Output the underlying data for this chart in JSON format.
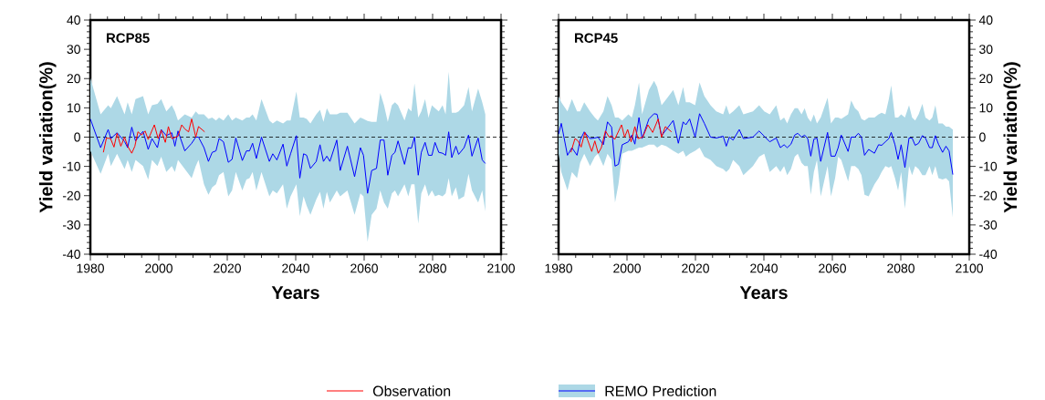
{
  "chart_data": [
    {
      "type": "line",
      "title": "RCP85",
      "xlabel": "Years",
      "ylabel": "Yield variation(%)",
      "xlim": [
        1980,
        2100
      ],
      "xticks": [
        1980,
        2000,
        2020,
        2040,
        2060,
        2080,
        2100
      ],
      "ylim": [
        -40,
        40
      ],
      "yticks": [
        -40,
        -30,
        -20,
        -10,
        0,
        10,
        20,
        30,
        40
      ],
      "legend": "bottom",
      "ref_lines": [
        {
          "axis": "y",
          "value": 0,
          "color": "#000000",
          "line_style": "dashed"
        }
      ],
      "series": [
        {
          "name": "Observation",
          "color": "#ff0000",
          "x": [
            1983.8,
            1984.7,
            1985.9,
            1986.9,
            1987.8,
            1988.9,
            1990.0,
            1990.9,
            1992.1,
            1993.0,
            1993.9,
            1995.0,
            1996.0,
            1996.9,
            1998.7,
            1999.8,
            2000.7,
            2001.9,
            2002.8,
            2003.8,
            2005.6,
            2006.7,
            2007.6,
            2008.7,
            2009.6,
            2010.8,
            2011.6,
            2013.4
          ],
          "values": [
            -5.2,
            -0.3,
            -0.5,
            -3.4,
            1.3,
            -3.1,
            0,
            -3.1,
            -5.5,
            -3.1,
            1.8,
            0.7,
            2.1,
            -0.8,
            4.2,
            -0.5,
            2.4,
            -1.8,
            3.6,
            -0.5,
            0.3,
            4.2,
            2.8,
            1.8,
            6.2,
            0,
            3.6,
            1.8
          ]
        },
        {
          "name": "REMO Prediction",
          "color": "#0000ff",
          "x": [
            1980.0,
            1983.0,
            1985.2,
            1986.0,
            1987.8,
            1990.0,
            1990.9,
            1992.1,
            1993.2,
            1995.4,
            1996.9,
            1998.0,
            1999.6,
            2000.7,
            2002.2,
            2003.8,
            2004.7,
            2005.6,
            2007.6,
            2009.6,
            2010.8,
            2011.6,
            2013.2,
            2014.5,
            2015.6,
            2016.7,
            2017.6,
            2018.9,
            2020.3,
            2021.4,
            2022.5,
            2024.4,
            2025.6,
            2026.5,
            2027.4,
            2028.5,
            2030.0,
            2032.3,
            2033.3,
            2034.5,
            2036.3,
            2037.4,
            2038.5,
            2040.2,
            2041.2,
            2042.3,
            2043.2,
            2044.3,
            2046.0,
            2047.1,
            2048.1,
            2049.1,
            2050.0,
            2052.0,
            2053.0,
            2055.1,
            2057.2,
            2058.9,
            2059.8,
            2061.0,
            2062.2,
            2063.6,
            2064.7,
            2065.8,
            2066.9,
            2068.1,
            2069.0,
            2069.9,
            2071.8,
            2072.9,
            2073.8,
            2074.7,
            2075.8,
            2076.7,
            2077.8,
            2078.8,
            2079.8,
            2080.7,
            2081.8,
            2082.9,
            2083.8,
            2084.7,
            2085.6,
            2086.8,
            2087.6,
            2089.2,
            2090.5,
            2091.5,
            2093.3,
            2094.5,
            2095.4
          ],
          "values": [
            6.2,
            -3.6,
            2.6,
            -0.5,
            1.5,
            -1.5,
            -3.6,
            3.4,
            -1.3,
            2.0,
            -4.2,
            -0.5,
            -3.6,
            2.6,
            0.5,
            1.5,
            -3.1,
            2.1,
            -4.7,
            -2.1,
            0,
            0,
            -3.6,
            -8.3,
            -5.2,
            -4.7,
            -0.5,
            -1.6,
            -8.6,
            -7.6,
            -0.3,
            -8.0,
            -4.7,
            -4.7,
            -2.1,
            -7.3,
            0,
            -8.3,
            -5.7,
            -7.8,
            -2.4,
            -9.9,
            -5.7,
            0.5,
            -14.0,
            -5.7,
            -6.2,
            -10.7,
            -8.3,
            -2.6,
            -8.3,
            -6.5,
            -8.3,
            -1.0,
            -11.4,
            -3.1,
            -13.5,
            -3.6,
            -6.2,
            -19.2,
            -11.4,
            -10.7,
            -1.0,
            -1.0,
            -13.0,
            -6.2,
            -5.2,
            -1.3,
            -9.3,
            -3.6,
            -3.8,
            0,
            -13.0,
            -5.2,
            -1.8,
            -6.2,
            -6.2,
            -1.8,
            -5.2,
            -5.5,
            -6.2,
            1.8,
            -7.0,
            -3.1,
            -5.9,
            -3.6,
            0.7,
            -6.5,
            -0.3,
            -7.8,
            -9.0
          ],
          "upper": [
            20.2,
            7.8,
            10.9,
            9.9,
            14.0,
            7.8,
            11.9,
            7.8,
            13.0,
            14.0,
            7.8,
            10.9,
            11.4,
            13.0,
            8.8,
            10.9,
            8.8,
            5.7,
            7.8,
            6.7,
            8.8,
            7.8,
            7.8,
            6.2,
            6.7,
            5.7,
            6.7,
            5.7,
            7.8,
            5.7,
            6.7,
            5.7,
            6.7,
            6.7,
            7.8,
            5.7,
            13.0,
            5.7,
            4.7,
            5.7,
            4.7,
            5.7,
            5.7,
            15.6,
            6.7,
            6.7,
            6.2,
            4.7,
            7.8,
            9.3,
            5.2,
            9.9,
            7.8,
            7.8,
            8.3,
            8.3,
            4.7,
            6.7,
            6.2,
            5.5,
            5.2,
            5.2,
            15.1,
            10.9,
            5.2,
            10.9,
            11.9,
            10.9,
            5.7,
            9.9,
            8.8,
            18.4,
            6.7,
            8.8,
            13.0,
            6.7,
            10.9,
            9.9,
            8.8,
            10.9,
            7.8,
            22.3,
            8.3,
            8.3,
            8.8,
            10.9,
            17.1,
            8.8,
            16.6,
            11.9,
            7.8
          ],
          "lower": [
            -4.7,
            -12.5,
            -5.7,
            -9.9,
            -5.7,
            -10.9,
            -7.8,
            -11.9,
            -7.8,
            -9.9,
            -14.5,
            -7.8,
            -9.9,
            -6.7,
            -11.9,
            -9.9,
            -11.9,
            -7.8,
            -10.9,
            -14.0,
            -9.9,
            -7.8,
            -16.1,
            -19.7,
            -17.1,
            -16.1,
            -13.0,
            -11.9,
            -20.2,
            -18.2,
            -11.9,
            -18.2,
            -14.5,
            -14.0,
            -11.9,
            -18.2,
            -11.9,
            -20.2,
            -18.2,
            -19.2,
            -16.1,
            -24.4,
            -20.2,
            -16.1,
            -27.0,
            -20.2,
            -23.4,
            -26.5,
            -21.3,
            -18.7,
            -24.4,
            -18.7,
            -22.3,
            -18.2,
            -20.2,
            -18.2,
            -26.5,
            -19.2,
            -20.2,
            -35.8,
            -26.5,
            -24.4,
            -18.2,
            -22.3,
            -24.4,
            -19.2,
            -18.2,
            -20.2,
            -16.1,
            -20.2,
            -16.1,
            -16.1,
            -29.6,
            -19.2,
            -16.1,
            -20.2,
            -18.2,
            -20.2,
            -19.7,
            -20.2,
            -19.2,
            -14.0,
            -20.2,
            -17.1,
            -21.3,
            -20.2,
            -12.5,
            -18.2,
            -22.3,
            -18.2,
            -25.4
          ]
        }
      ]
    },
    {
      "type": "line",
      "title": "RCP45",
      "xlabel": "Years",
      "y2label": "Yield variation(%)",
      "xlim": [
        1980,
        2100
      ],
      "xticks": [
        1980,
        2000,
        2020,
        2040,
        2060,
        2080,
        2100
      ],
      "y2lim": [
        -40,
        40
      ],
      "y2ticks": [
        -40,
        -30,
        -20,
        -10,
        0,
        10,
        20,
        30,
        40
      ],
      "ref_lines": [
        {
          "axis": "y2",
          "value": 0,
          "color": "#000000",
          "line_style": "dashed"
        }
      ],
      "series": [
        {
          "color": "#ff0000",
          "axis": "y2",
          "x": [
            1983.6,
            1984.8,
            1985.7,
            1986.6,
            1987.7,
            1988.6,
            1989.7,
            1990.6,
            1991.6,
            1992.5,
            1993.7,
            1994.8,
            1995.5,
            1996.4,
            1998.4,
            1999.3,
            2000.2,
            2001.2,
            2002.3,
            2003.2,
            2004.6,
            2006.1,
            2007.5,
            2009.1,
            2010.1,
            2011.2,
            2013.0
          ],
          "values": [
            -5.2,
            -0.5,
            -1.3,
            -3.4,
            1.6,
            -1.3,
            -4.9,
            -1.3,
            -5.5,
            -3.6,
            2.1,
            0,
            0.5,
            -0.8,
            4.2,
            0,
            2.6,
            -1.6,
            3.6,
            -0.5,
            0,
            4.2,
            1.6,
            6.2,
            0,
            3.6,
            1.8
          ]
        },
        {
          "color": "#0000ff",
          "axis": "y2",
          "x": [
            1980.0,
            1980.8,
            1982.6,
            1983.9,
            1985.4,
            1986.3,
            1987.5,
            1989.2,
            1990.6,
            1991.5,
            1993.1,
            1994.3,
            1995.5,
            1996.5,
            1997.5,
            1998.6,
            2000.4,
            2001.4,
            2002.3,
            2003.5,
            2004.4,
            2006.4,
            2007.9,
            2008.8,
            2010.1,
            2011.5,
            2013.5,
            2015.0,
            2016.4,
            2017.2,
            2018.3,
            2019.9,
            2021.2,
            2022.6,
            2024.4,
            2026.1,
            2028.1,
            2029.0,
            2029.9,
            2031.0,
            2032.8,
            2034.0,
            2036.8,
            2038.6,
            2040.1,
            2041.7,
            2043.6,
            2044.8,
            2045.9,
            2046.8,
            2047.9,
            2049.0,
            2049.9,
            2051.0,
            2051.9,
            2052.8,
            2053.7,
            2054.6,
            2055.5,
            2056.6,
            2058.6,
            2059.6,
            2060.8,
            2061.7,
            2062.6,
            2064.6,
            2065.5,
            2066.6,
            2067.6,
            2068.5,
            2069.4,
            2070.6,
            2072.3,
            2073.5,
            2074.4,
            2075.5,
            2076.5,
            2077.2,
            2078.3,
            2079.2,
            2080.1,
            2081.2,
            2082.4,
            2083.3,
            2084.2,
            2085.2,
            2086.3,
            2087.2,
            2088.4,
            2089.2,
            2090.1,
            2091.0,
            2092.2,
            2093.2,
            2094.1,
            2095.2
          ],
          "values": [
            1.0,
            4.7,
            -6.2,
            -3.6,
            -6.2,
            -1.0,
            1.8,
            -0.5,
            -0.3,
            0,
            -2.6,
            5.2,
            3.4,
            -9.9,
            -9.3,
            -2.6,
            -1.6,
            0.7,
            -2.4,
            6.7,
            -0.5,
            6.2,
            8.0,
            7.8,
            0.5,
            2.6,
            5.7,
            -2.1,
            5.2,
            4.2,
            6.2,
            0,
            8.0,
            4.7,
            0,
            -0.3,
            0.3,
            -3.1,
            0,
            -1.0,
            2.6,
            -0.5,
            0,
            2.1,
            0.3,
            -1.6,
            -0.3,
            -3.6,
            -2.6,
            -3.6,
            -2.4,
            0.7,
            1.3,
            0,
            0.7,
            -0.5,
            -6.5,
            -0.7,
            -0.3,
            -8.3,
            1.6,
            -6.5,
            -6.5,
            -3.6,
            0.7,
            -4.9,
            0,
            0,
            1.3,
            0,
            -6.2,
            -4.2,
            -5.5,
            -2.6,
            -2.8,
            -1.6,
            -0.5,
            1.6,
            -2.6,
            -7.6,
            -2.6,
            -10.4,
            -0.3,
            -0.3,
            -2.8,
            -2.1,
            0.5,
            -0.3,
            -3.6,
            -3.6,
            0.5,
            -2.4,
            -5.2,
            -3.1,
            -4.7,
            -12.8
          ],
          "upper": [
            14.0,
            11.9,
            8.8,
            13.0,
            8.8,
            8.8,
            11.9,
            8.8,
            6.7,
            5.7,
            8.8,
            14.0,
            10.9,
            6.7,
            6.7,
            5.7,
            7.8,
            6.7,
            10.9,
            18.7,
            7.8,
            16.1,
            19.2,
            17.1,
            10.9,
            13.0,
            16.1,
            10.9,
            17.1,
            11.9,
            11.9,
            10.9,
            18.7,
            14.0,
            10.9,
            8.8,
            7.8,
            10.9,
            7.8,
            8.8,
            10.9,
            7.8,
            8.8,
            10.9,
            8.8,
            7.8,
            10.9,
            5.7,
            6.7,
            4.7,
            7.8,
            9.9,
            9.9,
            7.8,
            9.9,
            6.7,
            5.2,
            7.8,
            4.7,
            6.7,
            13.5,
            4.7,
            6.7,
            6.7,
            6.2,
            7.8,
            12.5,
            9.9,
            8.8,
            6.2,
            5.7,
            6.7,
            6.7,
            7.8,
            8.3,
            7.8,
            13.0,
            17.7,
            6.7,
            6.7,
            7.8,
            6.7,
            10.9,
            6.7,
            5.7,
            7.8,
            11.4,
            6.7,
            5.7,
            6.7,
            10.9,
            4.7,
            4.7,
            3.6,
            3.6,
            2.6
          ],
          "lower": [
            -5.7,
            -11.9,
            -18.2,
            -11.9,
            -14.0,
            -8.8,
            -5.7,
            -9.9,
            -6.7,
            -5.7,
            -9.9,
            -5.7,
            -7.8,
            -22.3,
            -16.1,
            -5.7,
            -4.7,
            -4.7,
            -4.2,
            -3.6,
            -3.6,
            -2.6,
            -2.6,
            -3.6,
            -2.6,
            -3.1,
            -4.7,
            -5.7,
            -4.7,
            -6.7,
            -5.7,
            -4.7,
            -3.6,
            -6.7,
            -7.8,
            -9.9,
            -10.9,
            -11.9,
            -10.9,
            -7.8,
            -9.9,
            -13.0,
            -9.9,
            -6.7,
            -5.7,
            -11.9,
            -9.9,
            -11.9,
            -9.9,
            -13.0,
            -10.9,
            -6.7,
            -5.7,
            -8.8,
            -9.9,
            -9.9,
            -19.7,
            -11.9,
            -7.8,
            -20.2,
            -9.9,
            -20.2,
            -14.0,
            -6.7,
            -7.8,
            -15.1,
            -9.9,
            -9.9,
            -10.9,
            -13.0,
            -19.7,
            -20.2,
            -16.1,
            -14.0,
            -11.9,
            -9.9,
            -10.4,
            -9.9,
            -14.0,
            -18.2,
            -11.9,
            -24.4,
            -9.9,
            -13.0,
            -9.9,
            -10.9,
            -13.0,
            -13.0,
            -9.9,
            -13.0,
            -9.9,
            -14.0,
            -14.5,
            -14.0,
            -15.1,
            -27.5
          ]
        }
      ]
    }
  ]
}
